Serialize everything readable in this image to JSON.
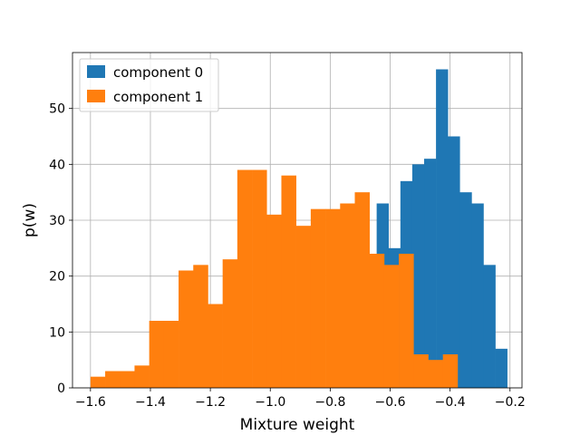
{
  "chart_data": {
    "type": "bar",
    "subtype": "histogram",
    "title": "",
    "xlabel": "Mixture weight",
    "ylabel": "p(w)",
    "xlim": [
      -1.66,
      -0.16
    ],
    "ylim": [
      0,
      60
    ],
    "xticks": [
      -1.6,
      -1.4,
      -1.2,
      -1.0,
      -0.8,
      -0.6,
      -0.4,
      -0.2
    ],
    "xtick_labels": [
      "−1.6",
      "−1.4",
      "−1.2",
      "−1.0",
      "−0.8",
      "−0.6",
      "−0.4",
      "−0.2"
    ],
    "yticks": [
      0,
      10,
      20,
      30,
      40,
      50
    ],
    "ytick_labels": [
      "0",
      "10",
      "20",
      "30",
      "40",
      "50"
    ],
    "grid": true,
    "legend_position": "top-left",
    "series": [
      {
        "name": "component 0",
        "color": "#1f77b4",
        "bin_start": -0.645,
        "bin_width": 0.0396,
        "values": [
          33,
          25,
          37,
          40,
          41,
          57,
          45,
          35,
          33,
          22,
          7
        ]
      },
      {
        "name": "component 1",
        "color": "#ff7f0e",
        "bin_start": -1.6,
        "bin_width": 0.049,
        "values": [
          2,
          3,
          3,
          4,
          12,
          12,
          21,
          22,
          15,
          23,
          39,
          39,
          31,
          38,
          29,
          32,
          32,
          33,
          35,
          24,
          22,
          24,
          6,
          5,
          6
        ]
      }
    ]
  }
}
